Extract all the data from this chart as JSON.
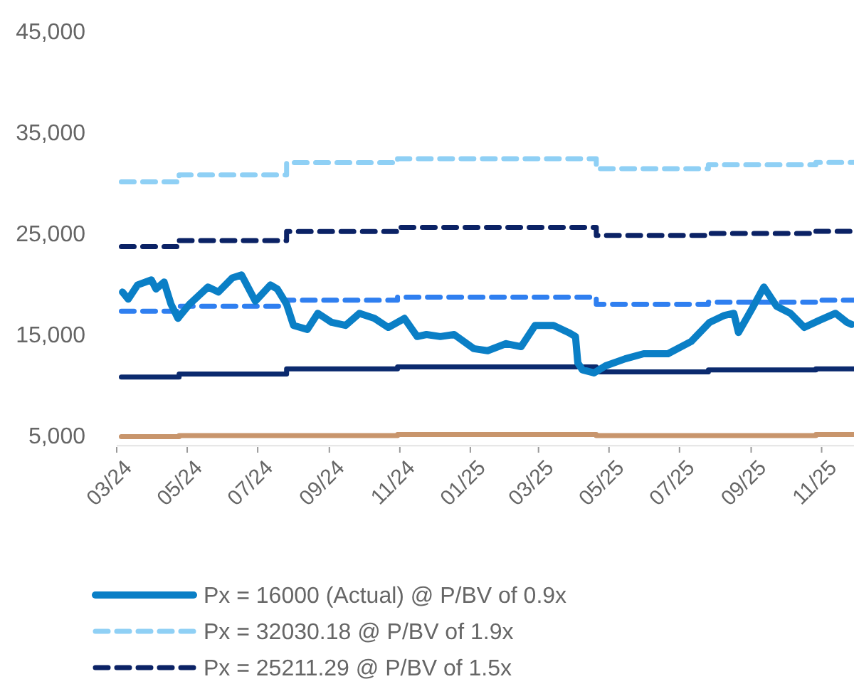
{
  "chart_data": {
    "type": "line",
    "xlim": [
      "2024-03-01",
      "2025-11-29"
    ],
    "ylim": [
      4000,
      45000
    ],
    "xticks": [
      {
        "value": "2024-03-01",
        "label": "03/24"
      },
      {
        "value": "2024-05-01",
        "label": "05/24"
      },
      {
        "value": "2024-07-01",
        "label": "07/24"
      },
      {
        "value": "2024-09-01",
        "label": "09/24"
      },
      {
        "value": "2024-11-01",
        "label": "11/24"
      },
      {
        "value": "2025-01-01",
        "label": "01/25"
      },
      {
        "value": "2025-03-01",
        "label": "03/25"
      },
      {
        "value": "2025-05-01",
        "label": "05/25"
      },
      {
        "value": "2025-07-01",
        "label": "07/25"
      },
      {
        "value": "2025-09-01",
        "label": "09/25"
      },
      {
        "value": "2025-11-01",
        "label": "11/25"
      }
    ],
    "yticks": [
      {
        "value": 5000,
        "label": "5,000"
      },
      {
        "value": 15000,
        "label": "15,000"
      },
      {
        "value": 25000,
        "label": "25,000"
      },
      {
        "value": 35000,
        "label": "35,000"
      },
      {
        "value": 45000,
        "label": "45,000"
      }
    ],
    "grid": false,
    "legend": "bottom",
    "marker": "none",
    "series": [
      {
        "type": "step",
        "color": "#c8956c",
        "line_style": "solid",
        "x": [
          "2024-03-05",
          "2024-04-24",
          "2024-07-26",
          "2024-10-30",
          "2025-04-20",
          "2025-07-26",
          "2025-10-27",
          "2025-11-29"
        ],
        "values": [
          4900,
          5000,
          5000,
          5100,
          5000,
          5000,
          5100,
          5100
        ]
      },
      {
        "type": "step",
        "color": "#0b2a6e",
        "line_style": "solid",
        "x": [
          "2024-03-05",
          "2024-04-24",
          "2024-07-26",
          "2024-10-30",
          "2025-04-20",
          "2025-07-26",
          "2025-10-27",
          "2025-11-29"
        ],
        "values": [
          10800,
          11100,
          11600,
          11800,
          11300,
          11500,
          11600,
          11600
        ]
      },
      {
        "type": "step",
        "color": "#2f7ff0",
        "line_style": "dashed",
        "x": [
          "2024-03-05",
          "2024-04-24",
          "2024-07-26",
          "2024-10-30",
          "2025-04-20",
          "2025-07-26",
          "2025-10-27",
          "2025-11-29"
        ],
        "values": [
          17300,
          17800,
          18400,
          18700,
          18000,
          18200,
          18400,
          18400
        ]
      },
      {
        "type": "step",
        "name": "Px = 25211.29 @ P/BV of 1.5x",
        "color": "#0b2265",
        "line_style": "dashed",
        "x": [
          "2024-03-05",
          "2024-04-24",
          "2024-07-26",
          "2024-10-30",
          "2025-04-20",
          "2025-07-26",
          "2025-10-27",
          "2025-11-29"
        ],
        "values": [
          23700,
          24300,
          25200,
          25600,
          24800,
          25000,
          25211.29,
          25211.29
        ]
      },
      {
        "type": "step",
        "name": "Px = 32030.18 @ P/BV of 1.9x",
        "color": "#8fd0f5",
        "line_style": "dashed",
        "x": [
          "2024-03-05",
          "2024-04-24",
          "2024-07-26",
          "2024-10-30",
          "2025-04-20",
          "2025-07-26",
          "2025-10-27",
          "2025-11-29"
        ],
        "values": [
          30100,
          30800,
          32000,
          32400,
          31400,
          31800,
          32030.18,
          32030.18
        ]
      },
      {
        "name": "Px = 16000 (Actual) @ P/BV of 0.9x",
        "color": "#0a7fc6",
        "line_style": "solid",
        "x": [
          "2024-03-06",
          "2024-03-11",
          "2024-03-19",
          "2024-03-31",
          "2024-04-04",
          "2024-04-11",
          "2024-04-17",
          "2024-04-23",
          "2024-05-03",
          "2024-05-19",
          "2024-05-28",
          "2024-06-09",
          "2024-06-17",
          "2024-06-29",
          "2024-07-12",
          "2024-07-18",
          "2024-07-26",
          "2024-08-01",
          "2024-08-13",
          "2024-08-22",
          "2024-09-03",
          "2024-09-15",
          "2024-09-27",
          "2024-10-10",
          "2024-10-22",
          "2024-11-05",
          "2024-11-16",
          "2024-11-24",
          "2024-12-06",
          "2024-12-18",
          "2025-01-04",
          "2025-01-16",
          "2025-02-01",
          "2025-02-14",
          "2025-02-26",
          "2025-03-14",
          "2025-03-27",
          "2025-04-02",
          "2025-04-04",
          "2025-04-08",
          "2025-04-18",
          "2025-04-28",
          "2025-05-15",
          "2025-05-31",
          "2025-06-21",
          "2025-07-11",
          "2025-07-27",
          "2025-08-09",
          "2025-08-17",
          "2025-08-21",
          "2025-09-02",
          "2025-09-12",
          "2025-09-23",
          "2025-10-05",
          "2025-10-17",
          "2025-10-30",
          "2025-11-13",
          "2025-11-23",
          "2025-11-27"
        ],
        "values": [
          19200,
          18500,
          19900,
          20400,
          19500,
          20200,
          18000,
          16600,
          18000,
          19700,
          19200,
          20600,
          20900,
          18300,
          19900,
          19500,
          18000,
          15900,
          15500,
          17100,
          16200,
          15900,
          17100,
          16600,
          15700,
          16600,
          14800,
          15000,
          14800,
          15000,
          13600,
          13400,
          14100,
          13800,
          15900,
          15900,
          15200,
          14800,
          12200,
          11500,
          11200,
          11900,
          12600,
          13100,
          13100,
          14300,
          16200,
          16900,
          17100,
          15200,
          17600,
          19700,
          17800,
          17100,
          15700,
          16400,
          17100,
          16200,
          16000
        ]
      }
    ]
  }
}
